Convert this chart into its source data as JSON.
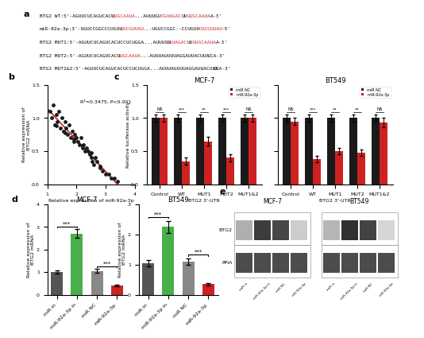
{
  "scatter_data": {
    "x": [
      1.1,
      1.15,
      1.2,
      1.25,
      1.3,
      1.35,
      1.4,
      1.45,
      1.5,
      1.55,
      1.6,
      1.65,
      1.7,
      1.75,
      1.8,
      1.85,
      1.9,
      1.95,
      2.0,
      2.05,
      2.1,
      2.15,
      2.2,
      2.25,
      2.3,
      2.35,
      2.4,
      2.45,
      2.5,
      2.55,
      2.6,
      2.65,
      2.7,
      2.8,
      2.9,
      3.0,
      3.1,
      3.2,
      3.3,
      3.4,
      1.3,
      1.6,
      1.9,
      2.2,
      2.5,
      2.8
    ],
    "y": [
      1.1,
      1.0,
      1.2,
      0.9,
      1.05,
      0.95,
      1.1,
      0.85,
      1.0,
      0.8,
      0.95,
      0.85,
      0.75,
      0.9,
      0.7,
      0.8,
      0.65,
      0.75,
      0.7,
      0.65,
      0.6,
      0.7,
      0.55,
      0.6,
      0.5,
      0.55,
      0.5,
      0.45,
      0.4,
      0.35,
      0.3,
      0.4,
      0.35,
      0.25,
      0.2,
      0.15,
      0.15,
      0.1,
      0.1,
      0.05,
      0.88,
      0.78,
      0.68,
      0.58,
      0.48,
      0.28
    ],
    "annotation": "R²=0.3475, P<0.001",
    "xlabel": "Relative expression of miR-92a-3p",
    "ylabel": "Relative expression of\nBTG2 mRNA",
    "xlim": [
      1,
      4
    ],
    "ylim": [
      0.0,
      1.5
    ],
    "xticks": [
      1,
      2,
      3,
      4
    ],
    "yticks": [
      0.0,
      0.5,
      1.0,
      1.5
    ]
  },
  "bar_c_mcf7": {
    "title": "MCF-7",
    "categories": [
      "Control",
      "WT",
      "MUT1",
      "MUT2",
      "MUT1&2"
    ],
    "nc_values": [
      1.0,
      1.0,
      1.0,
      1.0,
      1.0
    ],
    "mir_values": [
      1.0,
      0.35,
      0.65,
      0.4,
      1.0
    ],
    "nc_errors": [
      0.05,
      0.05,
      0.05,
      0.05,
      0.05
    ],
    "mir_errors": [
      0.05,
      0.05,
      0.07,
      0.05,
      0.05
    ],
    "ylabel": "Relative luciferase activity",
    "ylim": [
      0,
      1.5
    ],
    "yticks": [
      0.0,
      0.5,
      1.0,
      1.5
    ],
    "xlabel": "BTG2 3'-UTR",
    "sig_labels": [
      "NS",
      "***",
      "**",
      "***",
      "NS"
    ]
  },
  "bar_c_bt549": {
    "title": "BT549",
    "categories": [
      "Control",
      "WT",
      "MUT1",
      "MUT2",
      "MUT1&2"
    ],
    "nc_values": [
      1.0,
      1.0,
      1.0,
      1.0,
      1.0
    ],
    "mir_values": [
      0.95,
      0.38,
      0.5,
      0.48,
      0.93
    ],
    "nc_errors": [
      0.05,
      0.05,
      0.05,
      0.05,
      0.05
    ],
    "mir_errors": [
      0.05,
      0.05,
      0.05,
      0.05,
      0.07
    ],
    "ylabel": "Relative luciferase activity",
    "ylim": [
      0,
      1.5
    ],
    "yticks": [
      0.0,
      0.5,
      1.0,
      1.5
    ],
    "xlabel": "BTG2 3'-UTR",
    "sig_labels": [
      "NS",
      "***",
      "**",
      "**",
      "NS"
    ]
  },
  "bar_d_mcf7": {
    "title": "MCF-7",
    "categories": [
      "miR in",
      "miR-92a-3p in",
      "miR NC",
      "miR-92a-3p"
    ],
    "values": [
      1.0,
      2.7,
      1.05,
      0.4
    ],
    "errors": [
      0.08,
      0.2,
      0.08,
      0.04
    ],
    "colors": [
      "#555555",
      "#4aaf4a",
      "#888888",
      "#cc2222"
    ],
    "ylabel": "Relative expression of\nBTG2 mRNA",
    "ylim": [
      0,
      4
    ],
    "yticks": [
      0,
      1,
      2,
      3,
      4
    ],
    "sig_pairs": [
      [
        [
          0,
          1
        ],
        "***"
      ],
      [
        [
          2,
          3
        ],
        "***"
      ]
    ]
  },
  "bar_d_bt549": {
    "title": "BT549",
    "categories": [
      "miR in",
      "miR-92a-3p in",
      "miR NC",
      "miR-92a-3p"
    ],
    "values": [
      1.05,
      2.25,
      1.1,
      0.35
    ],
    "errors": [
      0.1,
      0.2,
      0.1,
      0.04
    ],
    "colors": [
      "#555555",
      "#4aaf4a",
      "#888888",
      "#cc2222"
    ],
    "ylabel": "Relative expression of\nBTG2 mRNA",
    "ylim": [
      0,
      3
    ],
    "yticks": [
      0,
      1,
      2,
      3
    ],
    "sig_pairs": [
      [
        [
          0,
          1
        ],
        "***"
      ],
      [
        [
          2,
          3
        ],
        "***"
      ]
    ]
  },
  "panel_a_lines": [
    [
      [
        "BTG2 WT:5'-AGUUCUCAGUCACU",
        "#000000"
      ],
      [
        "GUGCAAUA",
        "#cc2222"
      ],
      [
        "...AUUUGU",
        "#000000"
      ],
      [
        "CGUAGAC",
        "#cc2222"
      ],
      [
        "UU",
        "#000000"
      ],
      [
        "GUGCAAUA",
        "#cc2222"
      ],
      [
        "A-3'",
        "#000000"
      ]
    ],
    [
      [
        "miR-92a-3p:3'-UGUCCGGCCCUGUU",
        "#000000"
      ],
      [
        "CACGUUAU",
        "#cc2222"
      ],
      [
        "...UGUCCGGC--CCUGUU",
        "#000000"
      ],
      [
        "CACGUUAU",
        "#cc2222"
      ],
      [
        "-5'",
        "#000000"
      ]
    ],
    [
      [
        "BTG2 MUT1:5'-AGUUCUCAGUCACUCCUCUGGA...AUUUGU",
        "#000000"
      ],
      [
        "CGUAGAC",
        "#cc2222"
      ],
      [
        "UU",
        "#000000"
      ],
      [
        "GUGCAAUA",
        "#cc2222"
      ],
      [
        "A-3'",
        "#000000"
      ]
    ],
    [
      [
        "BTG2 MUT2:5'-AGUUCUCAGUCACU",
        "#000000"
      ],
      [
        "GUGCAAUA",
        "#cc2222"
      ],
      [
        "...AUUUAUUUUAGGAUUACUUA",
        "#000000"
      ],
      [
        "CCA-3'",
        "#000000"
      ]
    ],
    [
      [
        "BTG2 MUT1&2:5'-AGUUCUCAGUCACUCCUCUGGA...AUUUAUUUUAGGAUUACUUA",
        "#000000"
      ],
      [
        "CCA-3'",
        "#000000"
      ]
    ]
  ],
  "wb_btg2_mcf7": [
    0.35,
    0.85,
    0.8,
    0.22
  ],
  "wb_btg2_bt549": [
    0.32,
    0.9,
    0.82,
    0.18
  ],
  "wb_ppia_mcf7": [
    0.78,
    0.78,
    0.78,
    0.78
  ],
  "wb_ppia_bt549": [
    0.78,
    0.78,
    0.78,
    0.78
  ],
  "wb_lane_labels": [
    "miR in",
    "miR-92a-3p in",
    "miR NC",
    "miR-92a-3p"
  ],
  "colors": {
    "black_bar": "#1a1a1a",
    "red_bar": "#cc2222",
    "regression_line": "#cc2222"
  }
}
